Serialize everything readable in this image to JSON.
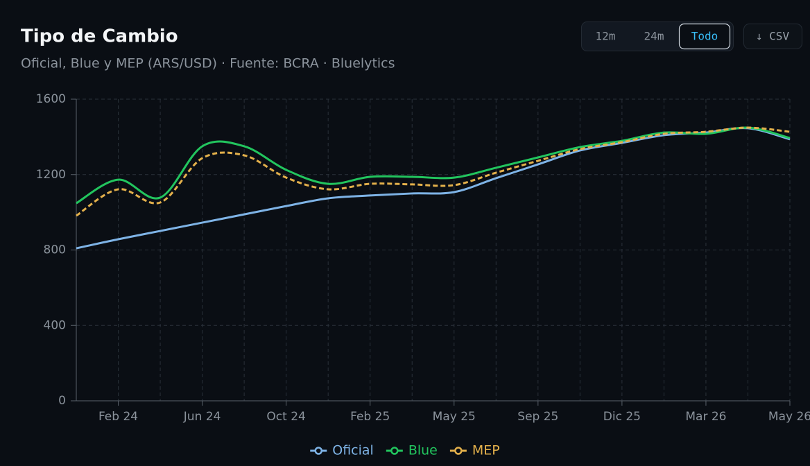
{
  "controls": {
    "ranges": [
      "12m",
      "24m",
      "Todo"
    ],
    "active_range": 2,
    "download": "↓ CSV"
  },
  "chart_data": {
    "type": "line",
    "title": "Tipo de Cambio",
    "subtitle": "Oficial, Blue y MEP (ARS/USD) · Fuente: BCRA · Bluelytics",
    "categories": [
      null,
      "Feb 24",
      null,
      "Jun 24",
      null,
      "Oct 24",
      null,
      "Feb 25",
      null,
      "May 25",
      null,
      "Sep 25",
      null,
      "Dic 25",
      null,
      "Mar 26",
      null,
      "May 26"
    ],
    "ylim": [
      0,
      1600
    ],
    "yticks": [
      0,
      400,
      800,
      1200,
      1600
    ],
    "grid": true,
    "legend": "bottom",
    "series": [
      {
        "name": "Oficial",
        "color": "#7eb3e6",
        "style": "solid",
        "values": [
          809,
          857,
          901,
          945,
          989,
          1033,
          1074,
          1089,
          1100,
          1107,
          1181,
          1254,
          1328,
          1368,
          1409,
          1423,
          1446,
          1387
        ]
      },
      {
        "name": "Blue",
        "color": "#22c55e",
        "style": "solid",
        "values": [
          1048,
          1173,
          1078,
          1350,
          1350,
          1225,
          1151,
          1188,
          1188,
          1184,
          1236,
          1291,
          1346,
          1379,
          1423,
          1416,
          1449,
          1394
        ]
      },
      {
        "name": "MEP",
        "color": "#e3b04b",
        "style": "dashed",
        "values": [
          982,
          1122,
          1052,
          1287,
          1302,
          1184,
          1122,
          1151,
          1148,
          1144,
          1210,
          1273,
          1335,
          1372,
          1416,
          1427,
          1449,
          1427
        ]
      }
    ]
  }
}
